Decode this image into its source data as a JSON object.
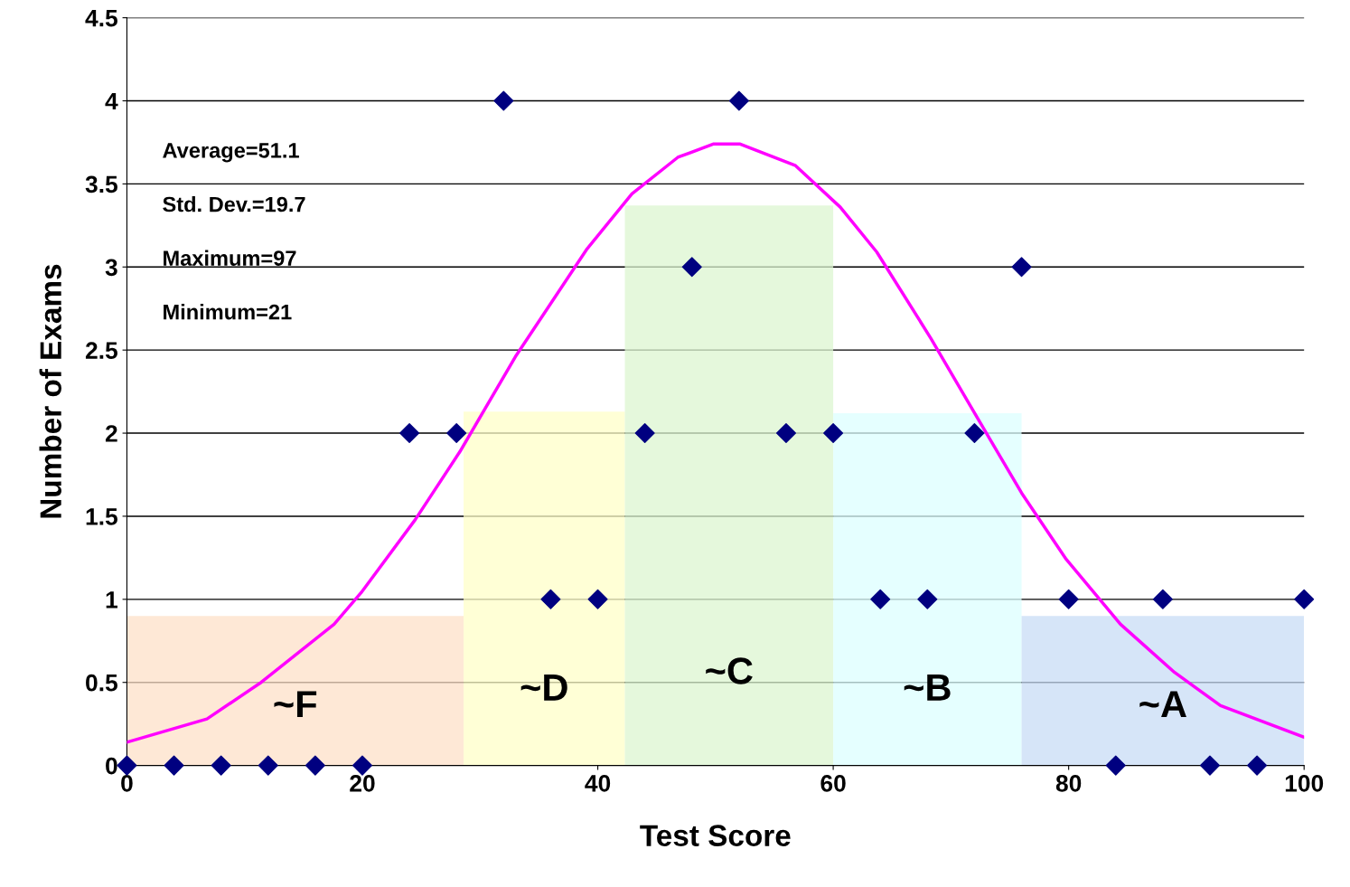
{
  "chart_data": {
    "type": "scatter",
    "xlabel": "Test Score",
    "ylabel": "Number of Exams",
    "xlim": [
      0,
      100
    ],
    "xticks": [
      0,
      20,
      40,
      60,
      80,
      100
    ],
    "ylim": [
      0,
      4.5
    ],
    "yticks": [
      0,
      0.5,
      1,
      1.5,
      2,
      2.5,
      3,
      3.5,
      4,
      4.5
    ],
    "grid": "y",
    "marker": "diamond",
    "annotations": [
      "Average=51.1",
      "Std. Dev.=19.7",
      "Maximum=97",
      "Minimum=21"
    ],
    "series": [
      {
        "type": "histogram",
        "bins": [
          0,
          28.6,
          42.3,
          60,
          76,
          100
        ],
        "values": [
          0.9,
          2.13,
          3.37,
          2.12,
          0.9
        ],
        "colors": [
          "#fde0c8",
          "#ffffc8",
          "#dcf5d0",
          "#dcffff",
          "#c8dcf5"
        ],
        "value_labels": [
          "~F",
          "~D",
          "~C",
          "~B",
          "~A"
        ]
      },
      {
        "type": "line",
        "color": "#ff00ff",
        "marker": "none",
        "x": [
          0,
          6.8,
          11.4,
          17.6,
          19.9,
          24.5,
          28.3,
          33,
          39.1,
          42.9,
          46.8,
          49.8,
          52.1,
          56.8,
          60.6,
          63.7,
          68.3,
          72.1,
          76,
          79.8,
          84.4,
          89,
          92.9,
          100
        ],
        "values": [
          0.14,
          0.28,
          0.5,
          0.85,
          1.04,
          1.48,
          1.89,
          2.46,
          3.11,
          3.44,
          3.66,
          3.74,
          3.74,
          3.61,
          3.36,
          3.09,
          2.57,
          2.11,
          1.64,
          1.24,
          0.85,
          0.56,
          0.36,
          0.17
        ]
      },
      {
        "color": "#000080",
        "x": [
          0,
          4,
          8,
          12,
          16,
          20,
          24,
          28,
          32,
          36,
          40,
          44,
          48,
          52,
          56,
          60,
          64,
          68,
          72,
          76,
          80,
          84,
          88,
          92,
          96,
          100
        ],
        "values": [
          0,
          0,
          0,
          0,
          0,
          0,
          2,
          2,
          4,
          1,
          1,
          2,
          3,
          4,
          2,
          2,
          1,
          1,
          2,
          3,
          1,
          0,
          1,
          0,
          0,
          1
        ]
      }
    ]
  }
}
